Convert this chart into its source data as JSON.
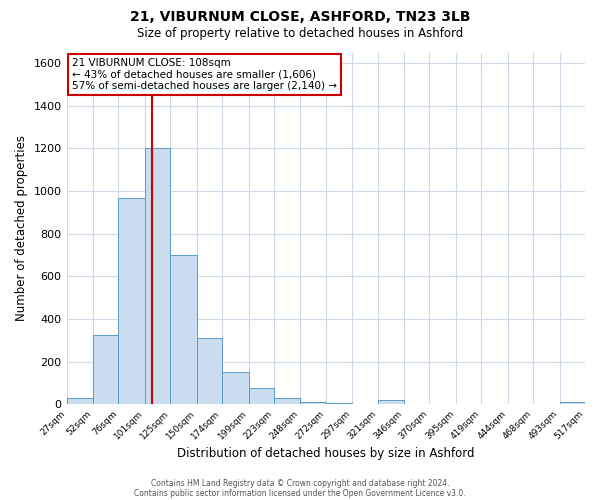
{
  "title": "21, VIBURNUM CLOSE, ASHFORD, TN23 3LB",
  "subtitle": "Size of property relative to detached houses in Ashford",
  "xlabel": "Distribution of detached houses by size in Ashford",
  "ylabel": "Number of detached properties",
  "bar_color": "#c9ddef",
  "bar_edge_color": "#5b9bc8",
  "background_color": "#ffffff",
  "grid_color": "#ccd9e8",
  "property_line_x": 108,
  "property_line_color": "#cc0000",
  "annotation_box_edge_color": "#cc0000",
  "annotation_line1": "21 VIBURNUM CLOSE: 108sqm",
  "annotation_line2": "← 43% of detached houses are smaller (1,606)",
  "annotation_line3": "57% of semi-detached houses are larger (2,140) →",
  "footer_line1": "Contains HM Land Registry data © Crown copyright and database right 2024.",
  "footer_line2": "Contains public sector information licensed under the Open Government Licence v3.0.",
  "bin_edges": [
    27,
    52,
    76,
    101,
    125,
    150,
    174,
    199,
    223,
    248,
    272,
    297,
    321,
    346,
    370,
    395,
    419,
    444,
    468,
    493,
    517
  ],
  "bin_labels": [
    "27sqm",
    "52sqm",
    "76sqm",
    "101sqm",
    "125sqm",
    "150sqm",
    "174sqm",
    "199sqm",
    "223sqm",
    "248sqm",
    "272sqm",
    "297sqm",
    "321sqm",
    "346sqm",
    "370sqm",
    "395sqm",
    "419sqm",
    "444sqm",
    "468sqm",
    "493sqm",
    "517sqm"
  ],
  "bar_heights": [
    30,
    325,
    970,
    1200,
    700,
    310,
    150,
    75,
    30,
    10,
    5,
    2,
    20,
    0,
    0,
    0,
    0,
    0,
    0,
    10
  ],
  "ylim": [
    0,
    1650
  ],
  "yticks": [
    0,
    200,
    400,
    600,
    800,
    1000,
    1200,
    1400,
    1600
  ]
}
